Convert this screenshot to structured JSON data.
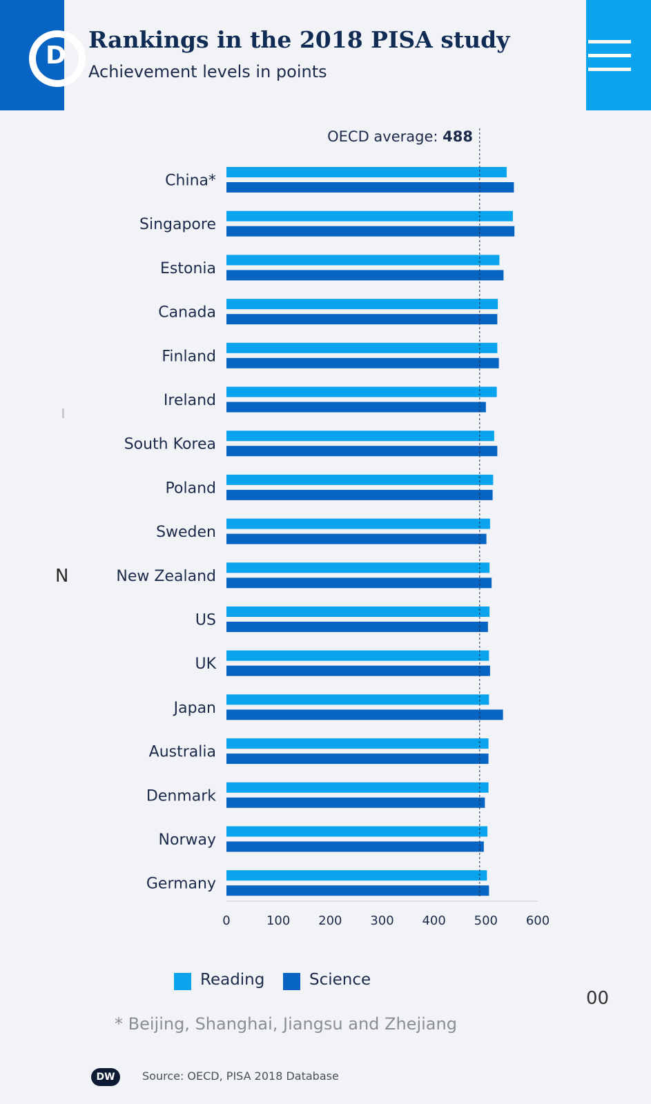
{
  "header": {
    "title": "Rankings in the 2018 PISA study",
    "subtitle": "Achievement levels in points",
    "logo_text": "D"
  },
  "colors": {
    "reading": "#0aa3ee",
    "science": "#0864c2",
    "header_left": "#0864c2",
    "header_right": "#0aa3ee"
  },
  "ghost": {
    "left_char": "N",
    "right_text": "00"
  },
  "chart_data": {
    "type": "bar",
    "orientation": "horizontal",
    "title": "Rankings in the 2018 PISA study",
    "subtitle": "Achievement levels in points",
    "reference_line": {
      "label": "OECD average:",
      "value_label": "488",
      "value": 488
    },
    "categories": [
      "China*",
      "Singapore",
      "Estonia",
      "Canada",
      "Finland",
      "Ireland",
      "South Korea",
      "Poland",
      "Sweden",
      "New Zealand",
      "US",
      "UK",
      "Japan",
      "Australia",
      "Denmark",
      "Norway",
      "Germany"
    ],
    "series": [
      {
        "name": "Reading",
        "values": [
          540,
          552,
          526,
          523,
          522,
          521,
          516,
          514,
          508,
          507,
          507,
          506,
          506,
          505,
          505,
          503,
          502
        ]
      },
      {
        "name": "Science",
        "values": [
          554,
          555,
          534,
          522,
          525,
          500,
          522,
          513,
          501,
          511,
          504,
          508,
          533,
          505,
          498,
          496,
          506
        ]
      }
    ],
    "xlim": [
      0,
      600
    ],
    "ticks": [
      "0",
      "100",
      "200",
      "300",
      "400",
      "500",
      "600"
    ],
    "tick_values": [
      0,
      100,
      200,
      300,
      400,
      500,
      600
    ],
    "legend": [
      "Reading",
      "Science"
    ],
    "legend_position": "bottom"
  },
  "footnote": "* Beijing, Shanghai, Jiangsu and Zhejiang",
  "source": {
    "badge": "DW",
    "text": "Source: OECD, PISA 2018 Database"
  }
}
